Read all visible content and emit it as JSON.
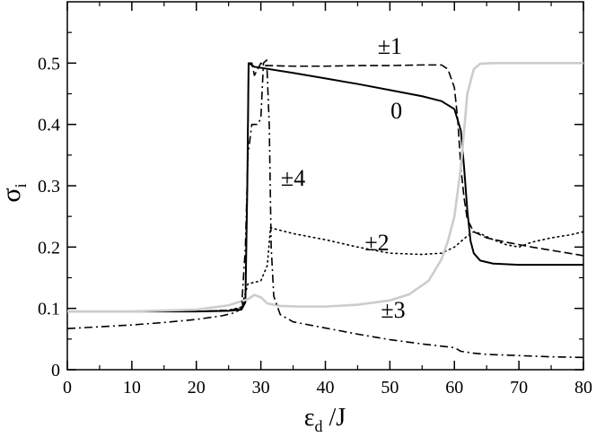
{
  "chart_data": {
    "type": "line",
    "title": "",
    "xlabel": {
      "main": "ε",
      "sub": "d",
      "suffix": " /J"
    },
    "ylabel": {
      "main": "σ",
      "sub": "i"
    },
    "xlim": [
      0,
      80
    ],
    "ylim": [
      0,
      0.6
    ],
    "xticks": [
      0,
      10,
      20,
      30,
      40,
      50,
      60,
      70,
      80
    ],
    "yticks": [
      0,
      0.1,
      0.2,
      0.3,
      0.4,
      0.5
    ],
    "ytick_labels": [
      "0",
      "0.1",
      "0.2",
      "0.3",
      "0.4",
      "0.5"
    ],
    "grid": false,
    "legend": "none",
    "series": [
      {
        "name": "0",
        "style": "solid",
        "color": "#000000",
        "points": [
          [
            0,
            0.095
          ],
          [
            10,
            0.095
          ],
          [
            20,
            0.095
          ],
          [
            25,
            0.096
          ],
          [
            27,
            0.098
          ],
          [
            27.6,
            0.11
          ],
          [
            27.9,
            0.3
          ],
          [
            28.1,
            0.5
          ],
          [
            29,
            0.494
          ],
          [
            35,
            0.484
          ],
          [
            40,
            0.475
          ],
          [
            45,
            0.466
          ],
          [
            50,
            0.456
          ],
          [
            55,
            0.446
          ],
          [
            58,
            0.438
          ],
          [
            60,
            0.425
          ],
          [
            61,
            0.39
          ],
          [
            61.5,
            0.33
          ],
          [
            62,
            0.26
          ],
          [
            62.5,
            0.21
          ],
          [
            63,
            0.19
          ],
          [
            64,
            0.178
          ],
          [
            66,
            0.173
          ],
          [
            70,
            0.171
          ],
          [
            75,
            0.171
          ],
          [
            80,
            0.171
          ]
        ]
      },
      {
        "name": "±1",
        "style": "dashed",
        "color": "#000000",
        "points": [
          [
            0,
            0.095
          ],
          [
            10,
            0.095
          ],
          [
            20,
            0.095
          ],
          [
            25,
            0.097
          ],
          [
            27,
            0.1
          ],
          [
            27.6,
            0.115
          ],
          [
            27.9,
            0.3
          ],
          [
            28.1,
            0.5
          ],
          [
            28.6,
            0.5
          ],
          [
            29,
            0.48
          ],
          [
            29.5,
            0.49
          ],
          [
            30,
            0.5
          ],
          [
            30.5,
            0.496
          ],
          [
            31,
            0.496
          ],
          [
            35,
            0.495
          ],
          [
            40,
            0.495
          ],
          [
            45,
            0.496
          ],
          [
            50,
            0.496
          ],
          [
            55,
            0.497
          ],
          [
            58,
            0.497
          ],
          [
            59,
            0.49
          ],
          [
            60,
            0.46
          ],
          [
            60.5,
            0.41
          ],
          [
            61,
            0.33
          ],
          [
            61.5,
            0.28
          ],
          [
            62,
            0.245
          ],
          [
            63,
            0.225
          ],
          [
            65,
            0.215
          ],
          [
            68,
            0.208
          ],
          [
            72,
            0.2
          ],
          [
            76,
            0.193
          ],
          [
            80,
            0.186
          ]
        ]
      },
      {
        "name": "±2",
        "style": "dotted",
        "color": "#000000",
        "points": [
          [
            0,
            0.095
          ],
          [
            10,
            0.095
          ],
          [
            20,
            0.095
          ],
          [
            25,
            0.097
          ],
          [
            27,
            0.102
          ],
          [
            28,
            0.14
          ],
          [
            30,
            0.145
          ],
          [
            31,
            0.17
          ],
          [
            31.5,
            0.232
          ],
          [
            32,
            0.23
          ],
          [
            35,
            0.222
          ],
          [
            40,
            0.212
          ],
          [
            45,
            0.2
          ],
          [
            50,
            0.19
          ],
          [
            55,
            0.188
          ],
          [
            58,
            0.19
          ],
          [
            60,
            0.2
          ],
          [
            62,
            0.218
          ],
          [
            63,
            0.225
          ],
          [
            64,
            0.222
          ],
          [
            66,
            0.212
          ],
          [
            68,
            0.204
          ],
          [
            70,
            0.2
          ],
          [
            72,
            0.208
          ],
          [
            75,
            0.215
          ],
          [
            78,
            0.22
          ],
          [
            80,
            0.225
          ]
        ]
      },
      {
        "name": "±3",
        "style": "solid-light",
        "color": "#cccccc",
        "points": [
          [
            0,
            0.095
          ],
          [
            10,
            0.095
          ],
          [
            20,
            0.098
          ],
          [
            25,
            0.105
          ],
          [
            28,
            0.115
          ],
          [
            29,
            0.122
          ],
          [
            30,
            0.118
          ],
          [
            31,
            0.108
          ],
          [
            33,
            0.104
          ],
          [
            36,
            0.103
          ],
          [
            40,
            0.103
          ],
          [
            45,
            0.106
          ],
          [
            50,
            0.113
          ],
          [
            53,
            0.123
          ],
          [
            56,
            0.145
          ],
          [
            58,
            0.18
          ],
          [
            59,
            0.21
          ],
          [
            60,
            0.25
          ],
          [
            61,
            0.33
          ],
          [
            62,
            0.45
          ],
          [
            63,
            0.49
          ],
          [
            64,
            0.499
          ],
          [
            66,
            0.5
          ],
          [
            70,
            0.5
          ],
          [
            75,
            0.5
          ],
          [
            80,
            0.5
          ]
        ]
      },
      {
        "name": "±4",
        "style": "dashdot",
        "color": "#000000",
        "points": [
          [
            0,
            0.067
          ],
          [
            5,
            0.07
          ],
          [
            10,
            0.073
          ],
          [
            15,
            0.077
          ],
          [
            20,
            0.082
          ],
          [
            24,
            0.088
          ],
          [
            26,
            0.093
          ],
          [
            27,
            0.1
          ],
          [
            27.6,
            0.2
          ],
          [
            28,
            0.35
          ],
          [
            28.6,
            0.4
          ],
          [
            29.5,
            0.4
          ],
          [
            30,
            0.41
          ],
          [
            30.4,
            0.5
          ],
          [
            30.9,
            0.505
          ],
          [
            31.3,
            0.4
          ],
          [
            31.6,
            0.2
          ],
          [
            32,
            0.12
          ],
          [
            33,
            0.09
          ],
          [
            35,
            0.078
          ],
          [
            40,
            0.068
          ],
          [
            45,
            0.058
          ],
          [
            50,
            0.049
          ],
          [
            55,
            0.042
          ],
          [
            60,
            0.036
          ],
          [
            61,
            0.03
          ],
          [
            63,
            0.027
          ],
          [
            65,
            0.025
          ],
          [
            70,
            0.023
          ],
          [
            75,
            0.021
          ],
          [
            80,
            0.02
          ]
        ]
      }
    ],
    "annotations": [
      {
        "text": "±1",
        "x": 50,
        "y": 0.515
      },
      {
        "text": "0",
        "x": 51,
        "y": 0.41
      },
      {
        "text": "±4",
        "x": 35,
        "y": 0.3
      },
      {
        "text": "±2",
        "x": 48,
        "y": 0.195
      },
      {
        "text": "±3",
        "x": 50.5,
        "y": 0.085
      }
    ]
  }
}
